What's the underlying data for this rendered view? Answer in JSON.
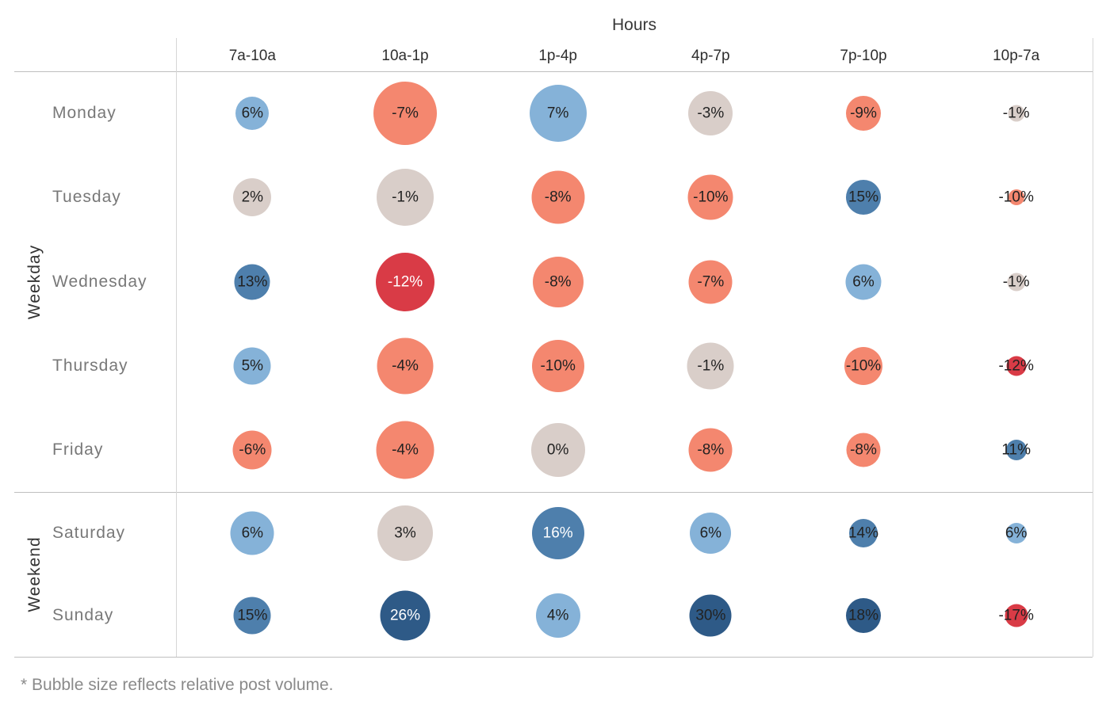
{
  "header": {
    "title": "Hours"
  },
  "footnote": "* Bubble size reflects relative post volume.",
  "palette": {
    "navy": "#2E5A87",
    "medium_blue": "#4E7FAC",
    "light_blue": "#85B2D8",
    "gray": "#D9CEC9",
    "salmon": "#F4876F",
    "red": "#D93B46",
    "label_dark": "#222222",
    "label_light": "#FFFFFF",
    "grid_line": "#BFBFBF",
    "axis_line": "#D6D6D6"
  },
  "chart_data": {
    "type": "bubble-matrix",
    "x_axis_title": "Hours",
    "x_categories": [
      "7a-10a",
      "10a-1p",
      "1p-4p",
      "4p-7p",
      "7p-10p",
      "10p-7a"
    ],
    "row_groups": [
      {
        "label": "Weekday",
        "rows": [
          "Monday",
          "Tuesday",
          "Wednesday",
          "Thursday",
          "Friday"
        ]
      },
      {
        "label": "Weekend",
        "rows": [
          "Saturday",
          "Sunday"
        ]
      }
    ],
    "value_unit": "percent",
    "size_encoding": "relative post volume",
    "cells": [
      [
        {
          "label": "6%",
          "value": 6,
          "size": 42,
          "color": "light_blue",
          "text": "dark"
        },
        {
          "label": "-7%",
          "value": -7,
          "size": 80,
          "color": "salmon",
          "text": "dark"
        },
        {
          "label": "7%",
          "value": 7,
          "size": 72,
          "color": "light_blue",
          "text": "dark"
        },
        {
          "label": "-3%",
          "value": -3,
          "size": 56,
          "color": "gray",
          "text": "dark"
        },
        {
          "label": "-9%",
          "value": -9,
          "size": 44,
          "color": "salmon",
          "text": "dark"
        },
        {
          "label": "-1%",
          "value": -1,
          "size": 21,
          "color": "gray",
          "text": "dark"
        }
      ],
      [
        {
          "label": "2%",
          "value": 2,
          "size": 48,
          "color": "gray",
          "text": "dark"
        },
        {
          "label": "-1%",
          "value": -1,
          "size": 72,
          "color": "gray",
          "text": "dark"
        },
        {
          "label": "-8%",
          "value": -8,
          "size": 67,
          "color": "salmon",
          "text": "dark"
        },
        {
          "label": "-10%",
          "value": -10,
          "size": 57,
          "color": "salmon",
          "text": "dark"
        },
        {
          "label": "15%",
          "value": 15,
          "size": 44,
          "color": "medium_blue",
          "text": "dark"
        },
        {
          "label": "-10%",
          "value": -10,
          "size": 20,
          "color": "salmon",
          "text": "dark"
        }
      ],
      [
        {
          "label": "13%",
          "value": 13,
          "size": 45,
          "color": "medium_blue",
          "text": "dark"
        },
        {
          "label": "-12%",
          "value": -12,
          "size": 74,
          "color": "red",
          "text": "light"
        },
        {
          "label": "-8%",
          "value": -8,
          "size": 64,
          "color": "salmon",
          "text": "dark"
        },
        {
          "label": "-7%",
          "value": -7,
          "size": 55,
          "color": "salmon",
          "text": "dark"
        },
        {
          "label": "6%",
          "value": 6,
          "size": 45,
          "color": "light_blue",
          "text": "dark"
        },
        {
          "label": "-1%",
          "value": -1,
          "size": 23,
          "color": "gray",
          "text": "dark"
        }
      ],
      [
        {
          "label": "5%",
          "value": 5,
          "size": 47,
          "color": "light_blue",
          "text": "dark"
        },
        {
          "label": "-4%",
          "value": -4,
          "size": 71,
          "color": "salmon",
          "text": "dark"
        },
        {
          "label": "-10%",
          "value": -10,
          "size": 66,
          "color": "salmon",
          "text": "dark"
        },
        {
          "label": "-1%",
          "value": -1,
          "size": 59,
          "color": "gray",
          "text": "dark"
        },
        {
          "label": "-10%",
          "value": -10,
          "size": 48,
          "color": "salmon",
          "text": "dark"
        },
        {
          "label": "-12%",
          "value": -12,
          "size": 25,
          "color": "red",
          "text": "dark"
        }
      ],
      [
        {
          "label": "-6%",
          "value": -6,
          "size": 49,
          "color": "salmon",
          "text": "dark"
        },
        {
          "label": "-4%",
          "value": -4,
          "size": 73,
          "color": "salmon",
          "text": "dark"
        },
        {
          "label": "0%",
          "value": 0,
          "size": 68,
          "color": "gray",
          "text": "dark"
        },
        {
          "label": "-8%",
          "value": -8,
          "size": 55,
          "color": "salmon",
          "text": "dark"
        },
        {
          "label": "-8%",
          "value": -8,
          "size": 43,
          "color": "salmon",
          "text": "dark"
        },
        {
          "label": "11%",
          "value": 11,
          "size": 26,
          "color": "medium_blue",
          "text": "dark"
        }
      ],
      [
        {
          "label": "6%",
          "value": 6,
          "size": 55,
          "color": "light_blue",
          "text": "dark"
        },
        {
          "label": "3%",
          "value": 3,
          "size": 70,
          "color": "gray",
          "text": "dark"
        },
        {
          "label": "16%",
          "value": 16,
          "size": 66,
          "color": "medium_blue",
          "text": "light"
        },
        {
          "label": "6%",
          "value": 6,
          "size": 52,
          "color": "light_blue",
          "text": "dark"
        },
        {
          "label": "14%",
          "value": 14,
          "size": 36,
          "color": "medium_blue",
          "text": "dark"
        },
        {
          "label": "6%",
          "value": 6,
          "size": 26,
          "color": "light_blue",
          "text": "dark"
        }
      ],
      [
        {
          "label": "15%",
          "value": 15,
          "size": 47,
          "color": "medium_blue",
          "text": "dark"
        },
        {
          "label": "26%",
          "value": 26,
          "size": 63,
          "color": "navy",
          "text": "light"
        },
        {
          "label": "4%",
          "value": 4,
          "size": 56,
          "color": "light_blue",
          "text": "dark"
        },
        {
          "label": "30%",
          "value": 30,
          "size": 53,
          "color": "navy",
          "text": "dark"
        },
        {
          "label": "18%",
          "value": 18,
          "size": 44,
          "color": "navy",
          "text": "dark"
        },
        {
          "label": "-17%",
          "value": -17,
          "size": 29,
          "color": "red",
          "text": "dark"
        }
      ]
    ]
  }
}
